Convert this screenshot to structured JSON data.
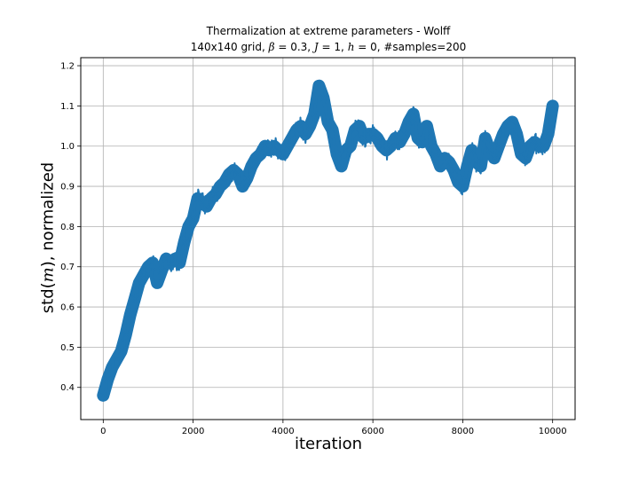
{
  "chart_data": {
    "type": "scatter",
    "title": "Thermalization at extreme parameters - Wolff",
    "subtitle": {
      "prefix": "140x140 grid, ",
      "beta_sym": "β",
      "beta_val": " = 0.3, ",
      "j_sym": "J",
      "j_val": " = 1, ",
      "h_sym": "h",
      "h_val": " = 0, #samples=200"
    },
    "xlabel": "iteration",
    "ylabel": {
      "pre": "std(",
      "var": "m",
      "post": "), normalized"
    },
    "xlim": [
      -500,
      10500
    ],
    "ylim": [
      0.32,
      1.22
    ],
    "xticks": [
      "0",
      "2000",
      "4000",
      "6000",
      "8000",
      "10000"
    ],
    "yticks": [
      "0.4",
      "0.5",
      "0.6",
      "0.7",
      "0.8",
      "0.9",
      "1.0",
      "1.1",
      "1.2"
    ],
    "grid": true,
    "marker": "x",
    "color": "#1f77b4",
    "series": [
      {
        "x": [
          0,
          100,
          200,
          300,
          400,
          500,
          600,
          700,
          800,
          900,
          1000,
          1100,
          1200,
          1300,
          1400,
          1500,
          1600,
          1700,
          1800,
          1900,
          2000,
          2100,
          2200,
          2300,
          2400,
          2500,
          2600,
          2700,
          2800,
          2900,
          3000,
          3100,
          3200,
          3300,
          3400,
          3500,
          3600,
          3700,
          3800,
          3900,
          4000,
          4100,
          4200,
          4300,
          4400,
          4500,
          4600,
          4700,
          4800,
          4900,
          5000,
          5100,
          5200,
          5300,
          5400,
          5500,
          5600,
          5700,
          5800,
          5900,
          6000,
          6100,
          6200,
          6300,
          6400,
          6500,
          6600,
          6700,
          6800,
          6900,
          7000,
          7100,
          7200,
          7300,
          7400,
          7500,
          7600,
          7700,
          7800,
          7900,
          8000,
          8100,
          8200,
          8300,
          8400,
          8500,
          8600,
          8700,
          8800,
          8900,
          9000,
          9100,
          9200,
          9300,
          9400,
          9500,
          9600,
          9700,
          9800,
          9900,
          10000
        ],
        "values": [
          0.38,
          0.42,
          0.45,
          0.47,
          0.49,
          0.53,
          0.58,
          0.62,
          0.66,
          0.68,
          0.7,
          0.71,
          0.66,
          0.69,
          0.72,
          0.71,
          0.72,
          0.71,
          0.76,
          0.8,
          0.82,
          0.87,
          0.86,
          0.85,
          0.87,
          0.88,
          0.9,
          0.91,
          0.93,
          0.94,
          0.93,
          0.9,
          0.92,
          0.95,
          0.97,
          0.98,
          1.0,
          0.99,
          1.0,
          0.99,
          0.98,
          1.0,
          1.02,
          1.04,
          1.05,
          1.03,
          1.05,
          1.08,
          1.15,
          1.12,
          1.06,
          1.04,
          0.98,
          0.95,
          0.99,
          1.0,
          1.04,
          1.05,
          1.02,
          1.03,
          1.03,
          1.02,
          1.0,
          0.99,
          1.0,
          1.02,
          1.01,
          1.03,
          1.06,
          1.08,
          1.02,
          1.01,
          1.05,
          1.0,
          0.98,
          0.95,
          0.97,
          0.96,
          0.94,
          0.91,
          0.9,
          0.95,
          0.99,
          0.96,
          0.95,
          1.02,
          0.99,
          0.97,
          1.0,
          1.03,
          1.05,
          1.06,
          1.03,
          0.98,
          0.97,
          1.0,
          1.01,
          1.0,
          1.0,
          1.03,
          1.1
        ]
      }
    ]
  }
}
